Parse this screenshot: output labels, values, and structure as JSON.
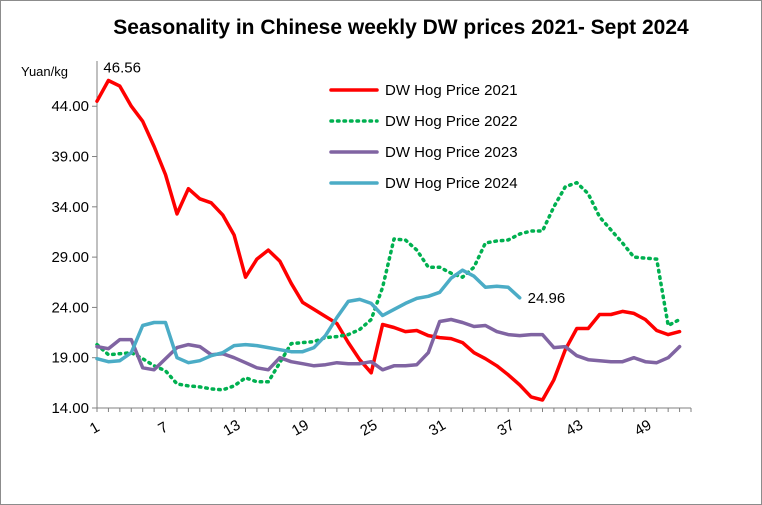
{
  "chart_data": {
    "type": "line",
    "title": "Seasonality in Chinese weekly DW prices 2021- Sept 2024",
    "ylabel": "Yuan/kg",
    "xlabel": "",
    "ylim": [
      14,
      48
    ],
    "y_ticks": [
      "14.00",
      "19.00",
      "24.00",
      "29.00",
      "34.00",
      "39.00",
      "44.00"
    ],
    "y_tick_values": [
      14,
      19,
      24,
      29,
      34,
      39,
      44
    ],
    "x_ticks": [
      1,
      7,
      13,
      19,
      25,
      31,
      37,
      43,
      49
    ],
    "xlim": [
      1,
      53
    ],
    "grid": false,
    "legend": "top-center",
    "series": [
      {
        "name": "DW Hog Price 2021",
        "color": "#ff0000",
        "style": "solid",
        "values": [
          44.5,
          46.56,
          46.0,
          44.0,
          42.5,
          40.0,
          37.2,
          33.3,
          35.8,
          34.8,
          34.4,
          33.2,
          31.2,
          27.0,
          28.8,
          29.7,
          28.6,
          26.4,
          24.5,
          23.8,
          23.1,
          22.4,
          20.5,
          18.8,
          17.5,
          22.3,
          22.0,
          21.6,
          21.7,
          21.2,
          21.0,
          20.9,
          20.5,
          19.5,
          18.9,
          18.2,
          17.3,
          16.3,
          15.1,
          14.8,
          16.8,
          19.8,
          21.9,
          21.9,
          23.3,
          23.3,
          23.6,
          23.4,
          22.8,
          21.7,
          21.3,
          21.6
        ]
      },
      {
        "name": "DW Hog Price 2022",
        "color": "#00b050",
        "style": "dotted",
        "values": [
          20.3,
          19.3,
          19.4,
          19.5,
          18.9,
          18.2,
          17.7,
          16.4,
          16.2,
          16.1,
          15.9,
          15.8,
          16.2,
          17.0,
          16.6,
          16.6,
          18.5,
          20.4,
          20.5,
          20.6,
          21.0,
          21.1,
          21.3,
          21.8,
          22.8,
          26.0,
          30.8,
          30.7,
          29.7,
          28.0,
          28.0,
          27.4,
          27.0,
          28.0,
          30.4,
          30.6,
          30.7,
          31.3,
          31.6,
          31.6,
          34.0,
          36.0,
          36.4,
          35.3,
          33.0,
          31.7,
          30.4,
          29.0,
          28.9,
          28.8,
          22.2,
          22.8
        ]
      },
      {
        "name": "DW Hog Price 2023",
        "color": "#8064a2",
        "style": "solid",
        "values": [
          20.1,
          19.9,
          20.8,
          20.8,
          18.0,
          17.8,
          18.9,
          20.0,
          20.3,
          20.1,
          19.3,
          19.4,
          19.0,
          18.5,
          18.0,
          17.8,
          19.0,
          18.6,
          18.4,
          18.2,
          18.3,
          18.5,
          18.4,
          18.4,
          18.6,
          17.8,
          18.2,
          18.2,
          18.3,
          19.5,
          22.6,
          22.8,
          22.5,
          22.1,
          22.2,
          21.6,
          21.3,
          21.2,
          21.3,
          21.3,
          20.0,
          20.1,
          19.2,
          18.8,
          18.7,
          18.6,
          18.6,
          19.0,
          18.6,
          18.5,
          19.0,
          20.1
        ]
      },
      {
        "name": "DW Hog Price 2024",
        "color": "#4bacc6",
        "style": "solid",
        "values": [
          18.9,
          18.6,
          18.7,
          19.5,
          22.2,
          22.5,
          22.5,
          19.0,
          18.5,
          18.7,
          19.2,
          19.5,
          20.2,
          20.3,
          20.2,
          20.0,
          19.8,
          19.6,
          19.6,
          20.0,
          21.2,
          23.0,
          24.6,
          24.8,
          24.4,
          23.2,
          23.8,
          24.4,
          24.9,
          25.1,
          25.5,
          26.9,
          27.7,
          27.1,
          26.0,
          26.1,
          26.0,
          24.96
        ]
      }
    ],
    "annotations": [
      {
        "text": "46.56",
        "series": 0,
        "index": 1
      },
      {
        "text": "24.96",
        "series": 3,
        "index": 37
      }
    ]
  }
}
